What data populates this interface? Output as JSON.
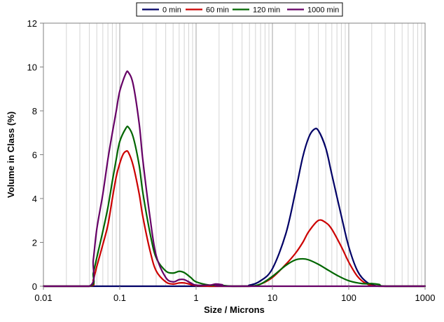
{
  "chart_data": {
    "type": "line",
    "xlabel": "Size / Microns",
    "ylabel": "Volume in Class (%)",
    "xscale": "log",
    "xlim": [
      0.01,
      1000
    ],
    "ylim": [
      0,
      12
    ],
    "x_ticks": [
      0.01,
      0.1,
      1,
      10,
      100,
      1000
    ],
    "x_tick_labels": [
      "0.01",
      "0.1",
      "1",
      "10",
      "100",
      "1000"
    ],
    "y_ticks": [
      0,
      2,
      4,
      6,
      8,
      10,
      12
    ],
    "y_tick_labels": [
      "0",
      "2",
      "4",
      "6",
      "8",
      "10",
      "12"
    ],
    "grid": "vertical minor log gridlines",
    "legend": "top-center, horizontal",
    "series": [
      {
        "name": "0 min",
        "color": "#000066",
        "points": [
          [
            0.01,
            0
          ],
          [
            3,
            0
          ],
          [
            5,
            0.05
          ],
          [
            7,
            0.25
          ],
          [
            10,
            0.8
          ],
          [
            15,
            2.4
          ],
          [
            20,
            4.3
          ],
          [
            25,
            5.9
          ],
          [
            30,
            6.8
          ],
          [
            35,
            7.15
          ],
          [
            40,
            7.1
          ],
          [
            50,
            6.3
          ],
          [
            60,
            5.1
          ],
          [
            80,
            3.2
          ],
          [
            100,
            1.8
          ],
          [
            130,
            0.7
          ],
          [
            170,
            0.2
          ],
          [
            220,
            0.03
          ],
          [
            300,
            0
          ],
          [
            1000,
            0
          ]
        ]
      },
      {
        "name": "60 min",
        "color": "#cc0000",
        "points": [
          [
            0.01,
            0
          ],
          [
            0.04,
            0
          ],
          [
            0.045,
            0.3
          ],
          [
            0.05,
            0.9
          ],
          [
            0.06,
            1.9
          ],
          [
            0.07,
            2.8
          ],
          [
            0.08,
            4
          ],
          [
            0.09,
            5
          ],
          [
            0.1,
            5.6
          ],
          [
            0.11,
            6
          ],
          [
            0.12,
            6.15
          ],
          [
            0.13,
            6.1
          ],
          [
            0.15,
            5.5
          ],
          [
            0.18,
            4.2
          ],
          [
            0.2,
            3.2
          ],
          [
            0.25,
            1.6
          ],
          [
            0.3,
            0.7
          ],
          [
            0.4,
            0.2
          ],
          [
            0.5,
            0.1
          ],
          [
            0.6,
            0.15
          ],
          [
            0.7,
            0.15
          ],
          [
            0.85,
            0.08
          ],
          [
            1,
            0.03
          ],
          [
            1.5,
            0
          ],
          [
            5,
            0
          ],
          [
            7,
            0.1
          ],
          [
            10,
            0.4
          ],
          [
            15,
            1
          ],
          [
            20,
            1.5
          ],
          [
            25,
            2
          ],
          [
            30,
            2.5
          ],
          [
            40,
            3
          ],
          [
            50,
            2.9
          ],
          [
            60,
            2.6
          ],
          [
            80,
            1.8
          ],
          [
            100,
            1.1
          ],
          [
            130,
            0.45
          ],
          [
            170,
            0.12
          ],
          [
            250,
            0
          ],
          [
            1000,
            0
          ]
        ]
      },
      {
        "name": "120 min",
        "color": "#006600",
        "points": [
          [
            0.01,
            0
          ],
          [
            0.04,
            0
          ],
          [
            0.045,
            0.6
          ],
          [
            0.05,
            1.3
          ],
          [
            0.06,
            2.5
          ],
          [
            0.07,
            3.6
          ],
          [
            0.08,
            4.8
          ],
          [
            0.09,
            5.8
          ],
          [
            0.1,
            6.6
          ],
          [
            0.12,
            7.2
          ],
          [
            0.13,
            7.25
          ],
          [
            0.15,
            6.8
          ],
          [
            0.18,
            5.5
          ],
          [
            0.2,
            4.3
          ],
          [
            0.25,
            2.4
          ],
          [
            0.3,
            1.3
          ],
          [
            0.4,
            0.7
          ],
          [
            0.5,
            0.6
          ],
          [
            0.6,
            0.68
          ],
          [
            0.7,
            0.62
          ],
          [
            0.85,
            0.4
          ],
          [
            1,
            0.2
          ],
          [
            1.5,
            0.05
          ],
          [
            2,
            0.05
          ],
          [
            3,
            0
          ],
          [
            5,
            0
          ],
          [
            7,
            0.1
          ],
          [
            10,
            0.45
          ],
          [
            15,
            0.95
          ],
          [
            20,
            1.2
          ],
          [
            25,
            1.25
          ],
          [
            30,
            1.2
          ],
          [
            40,
            1
          ],
          [
            50,
            0.8
          ],
          [
            70,
            0.5
          ],
          [
            100,
            0.25
          ],
          [
            150,
            0.12
          ],
          [
            200,
            0.12
          ],
          [
            250,
            0.08
          ],
          [
            300,
            0
          ],
          [
            1000,
            0
          ]
        ]
      },
      {
        "name": "1000 min",
        "color": "#660066",
        "points": [
          [
            0.01,
            0
          ],
          [
            0.04,
            0
          ],
          [
            0.045,
            1.2
          ],
          [
            0.05,
            2.6
          ],
          [
            0.06,
            4.2
          ],
          [
            0.07,
            5.8
          ],
          [
            0.08,
            7
          ],
          [
            0.09,
            8
          ],
          [
            0.1,
            8.9
          ],
          [
            0.12,
            9.7
          ],
          [
            0.13,
            9.75
          ],
          [
            0.15,
            9.2
          ],
          [
            0.18,
            7.4
          ],
          [
            0.2,
            5.8
          ],
          [
            0.25,
            3.1
          ],
          [
            0.3,
            1.4
          ],
          [
            0.4,
            0.4
          ],
          [
            0.5,
            0.2
          ],
          [
            0.6,
            0.3
          ],
          [
            0.7,
            0.3
          ],
          [
            0.85,
            0.15
          ],
          [
            1,
            0.05
          ],
          [
            1.5,
            0.05
          ],
          [
            1.8,
            0.1
          ],
          [
            2.2,
            0.07
          ],
          [
            3,
            0
          ],
          [
            1000,
            0
          ]
        ]
      }
    ]
  }
}
